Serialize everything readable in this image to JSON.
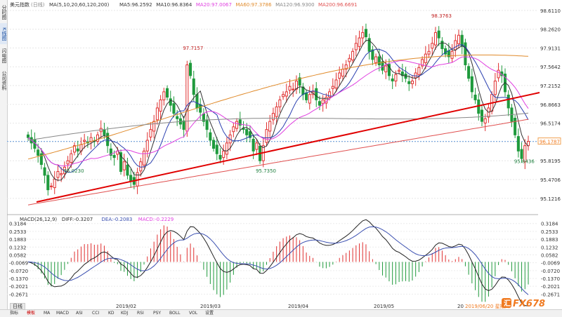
{
  "side_tabs": [
    "分时图",
    "K线图",
    "闪电图",
    "公司资料"
  ],
  "bottom_tabs": [
    "指标",
    "模板",
    "MA",
    "MACD",
    "ASI",
    "CCI",
    "KD",
    "KDJ",
    "RSI",
    "PSY",
    "BOLL",
    "VOL",
    "设置"
  ],
  "period_label": "日线",
  "watermark": "FX678",
  "price_header": {
    "name": "美元指数",
    "period": "(日线)",
    "ma_label": "MA(5,10,20,60,120,200)",
    "items": [
      {
        "text": "MA5:96.2592",
        "color": "#333333"
      },
      {
        "text": "MA10:96.8364",
        "color": "#333333"
      },
      {
        "text": "MA20:97.0067",
        "color": "#e040e0"
      },
      {
        "text": "MA60:97.3786",
        "color": "#e08a2a"
      },
      {
        "text": "MA120:96.9300",
        "color": "#888888"
      },
      {
        "text": "MA200:96.6691",
        "color": "#e05050"
      }
    ]
  },
  "macd_header": {
    "label": "MACD(26,12,9)",
    "items": [
      {
        "text": "DIFF:-0.3207",
        "color": "#333333"
      },
      {
        "text": "DEA:-0.2083",
        "color": "#3a4fb0"
      },
      {
        "text": "MACD:-0.2229",
        "color": "#e040e0"
      }
    ]
  },
  "colors": {
    "up": "#e03030",
    "down": "#1f9a3c",
    "trend": "#e00000"
  },
  "chart_data": [
    {
      "type": "candlestick",
      "title": "美元指数 (日线)",
      "x_labels": [
        "2019/02",
        "2019/03",
        "2019/04",
        "2019/05",
        "20",
        "2019/06/20 星期四"
      ],
      "y_ticks": [
        98.611,
        98.262,
        97.9131,
        97.5642,
        97.2152,
        96.8663,
        96.5174,
        96.1684,
        95.8195,
        95.4706,
        95.1216
      ],
      "ylim": [
        94.95,
        98.7
      ],
      "current_price": "96.1787",
      "annotations": [
        {
          "text": "97.7157",
          "at_index": 48,
          "pos": "above"
        },
        {
          "text": "98.3763",
          "at_index": 123,
          "pos": "above"
        },
        {
          "text": "95.7350",
          "at_index": 70,
          "pos": "below"
        },
        {
          "text": "95.0230",
          "at_index": 12,
          "pos": "below"
        },
        {
          "text": "95.8436",
          "at_index": 148,
          "pos": "below"
        }
      ],
      "closes": [
        96.25,
        96.15,
        96.05,
        95.92,
        95.75,
        95.55,
        95.28,
        95.35,
        95.48,
        95.62,
        95.58,
        95.7,
        95.82,
        95.95,
        96.1,
        96.0,
        96.12,
        96.2,
        96.15,
        96.25,
        96.18,
        96.3,
        96.42,
        96.3,
        96.1,
        95.92,
        95.88,
        96.0,
        95.62,
        95.8,
        95.55,
        95.45,
        95.38,
        95.6,
        95.8,
        96.0,
        96.2,
        96.4,
        96.55,
        96.8,
        96.95,
        97.1,
        97.0,
        96.85,
        96.7,
        96.6,
        96.5,
        96.4,
        97.6,
        97.4,
        97.05,
        96.8,
        96.72,
        96.55,
        96.4,
        96.2,
        96.05,
        95.95,
        95.85,
        96.0,
        96.15,
        96.3,
        96.45,
        96.55,
        96.48,
        96.4,
        96.3,
        96.25,
        96.0,
        96.15,
        95.82,
        96.1,
        96.4,
        96.55,
        96.7,
        96.82,
        96.95,
        97.05,
        97.1,
        97.2,
        97.15,
        97.3,
        97.22,
        97.05,
        96.95,
        97.05,
        97.1,
        96.95,
        96.85,
        96.95,
        97.0,
        97.1,
        97.2,
        97.32,
        97.45,
        97.52,
        97.6,
        97.72,
        97.85,
        98.0,
        98.1,
        98.2,
        98.12,
        97.85,
        97.7,
        97.75,
        97.6,
        97.5,
        97.58,
        97.4,
        97.3,
        97.42,
        97.5,
        97.4,
        97.35,
        97.25,
        97.3,
        97.45,
        97.55,
        97.7,
        97.8,
        97.85,
        98.0,
        98.2,
        98.1,
        97.9,
        97.8,
        97.75,
        97.85,
        98.05,
        98.15,
        97.95,
        97.6,
        97.35,
        97.1,
        96.95,
        96.7,
        96.55,
        96.6,
        96.8,
        97.05,
        97.3,
        97.5,
        97.4,
        97.1,
        96.8,
        96.55,
        96.3,
        96.0,
        95.86,
        96.1,
        96.18
      ],
      "series": [
        {
          "name": "MA5",
          "color": "#333333"
        },
        {
          "name": "MA10",
          "color": "#2a3fb0"
        },
        {
          "name": "MA20",
          "color": "#e040e0"
        },
        {
          "name": "MA60",
          "color": "#e08a2a"
        },
        {
          "name": "MA120",
          "color": "#888888"
        },
        {
          "name": "MA200",
          "color": "#e05050"
        }
      ]
    },
    {
      "type": "macd",
      "label": "MACD(26,12,9)",
      "y_ticks": [
        0.3184,
        0.2533,
        0.1883,
        0.1232,
        0.0582,
        -0.0069,
        -0.072,
        -0.137,
        -0.2021,
        -0.2671
      ],
      "ylim": [
        -0.3,
        0.34
      ],
      "series": [
        {
          "name": "DIFF",
          "color": "#222222"
        },
        {
          "name": "DEA",
          "color": "#3a4fb0"
        },
        {
          "name": "MACD",
          "color": "#e040e0"
        }
      ]
    }
  ]
}
